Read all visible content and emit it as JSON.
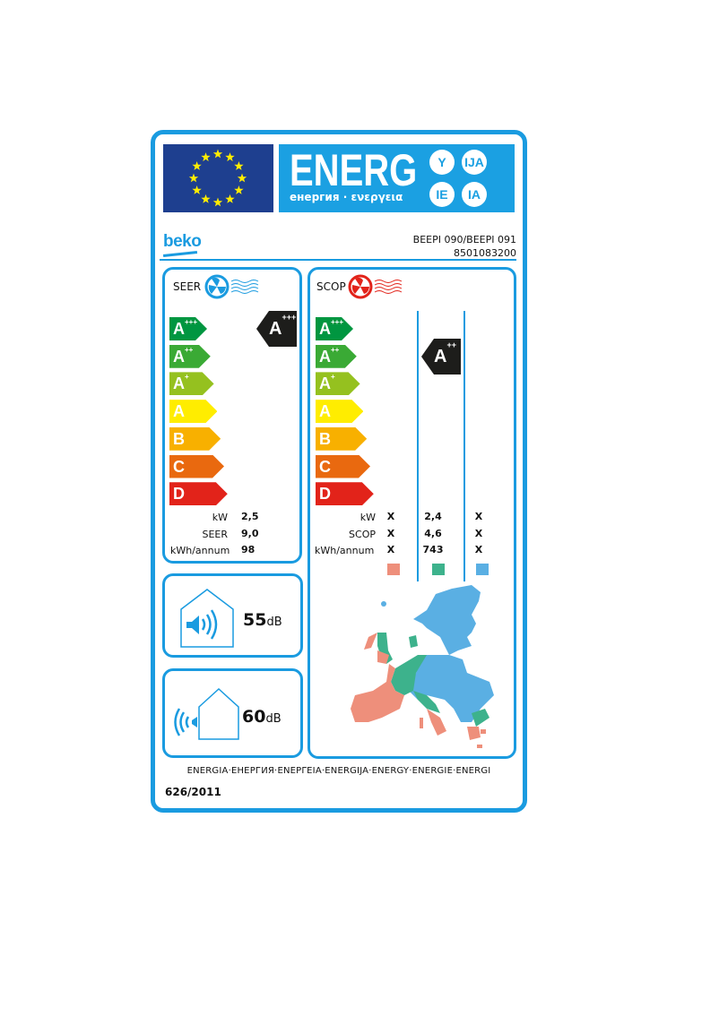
{
  "header": {
    "energ": "ENERG",
    "subtitle": "енергия · ενεργεια",
    "suffixes": [
      "Y",
      "IJA",
      "IE",
      "IA"
    ],
    "flag_icon": "eu-flag-icon"
  },
  "brand": "beko",
  "model": "BEEPI 090/BEEPI 091",
  "code": "8501083200",
  "classes": [
    {
      "letter": "A",
      "plus": "+++",
      "color": "#009640"
    },
    {
      "letter": "A",
      "plus": "++",
      "color": "#3aaa35"
    },
    {
      "letter": "A",
      "plus": "+",
      "color": "#95c11f"
    },
    {
      "letter": "A",
      "plus": "",
      "color": "#ffed00"
    },
    {
      "letter": "B",
      "plus": "",
      "color": "#f8b000"
    },
    {
      "letter": "C",
      "plus": "",
      "color": "#e9690f"
    },
    {
      "letter": "D",
      "plus": "",
      "color": "#e2231a"
    }
  ],
  "seer": {
    "title": "SEER",
    "rating": {
      "letter": "A",
      "plus": "+++"
    },
    "labels": [
      "kW",
      "SEER",
      "kWh/annum"
    ],
    "values": [
      "2,5",
      "9,0",
      "98"
    ]
  },
  "scop": {
    "title": "SCOP",
    "rating": {
      "letter": "A",
      "plus": "++",
      "zone": "average"
    },
    "labels": [
      "kW",
      "SCOP",
      "kWh/annum"
    ],
    "zones": [
      {
        "color": "#ee8f7b",
        "values": [
          "X",
          "X",
          "X"
        ]
      },
      {
        "color": "#3db28c",
        "values": [
          "2,4",
          "4,6",
          "743"
        ]
      },
      {
        "color": "#5aafe3",
        "values": [
          "X",
          "X",
          "X"
        ]
      }
    ]
  },
  "noise": {
    "indoor": {
      "value": "55",
      "unit": "dB"
    },
    "outdoor": {
      "value": "60",
      "unit": "dB"
    }
  },
  "footer": {
    "energy_words": "ENERGIA·ЕНЕРГИЯ·ΕΝΕΡΓΕΙΑ·ENERGIJA·ENERGY·ENERGIE·ENERGI",
    "regulation": "626/2011"
  },
  "colors": {
    "label_blue": "#1a9be0",
    "flag_blue": "#1e3f8f",
    "star": "#ffed00"
  }
}
